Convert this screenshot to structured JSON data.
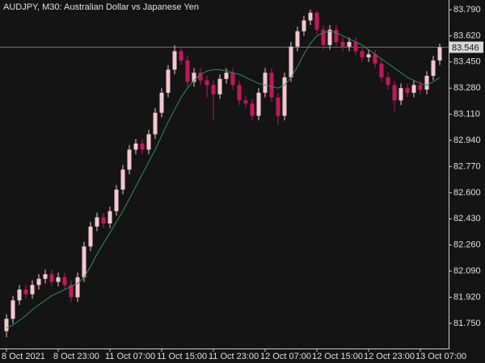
{
  "chart_data": {
    "type": "candlestick",
    "title": "AUDJPY, M30:  Australian Dollar vs Japanese Yen",
    "categories": [
      "8 Oct 2021",
      null,
      null,
      null,
      null,
      null,
      null,
      null,
      "8 Oct 23:00",
      null,
      null,
      null,
      null,
      null,
      null,
      null,
      "11 Oct 07:00",
      null,
      null,
      null,
      null,
      null,
      null,
      null,
      "11 Oct 15:00",
      null,
      null,
      null,
      null,
      null,
      null,
      null,
      "11 Oct 23:00",
      null,
      null,
      null,
      null,
      null,
      null,
      null,
      "12 Oct 07:00",
      null,
      null,
      null,
      null,
      null,
      null,
      null,
      "12 Oct 15:00",
      null,
      null,
      null,
      null,
      null,
      null,
      null,
      "12 Oct 23:00",
      null,
      null,
      null,
      null,
      null,
      null,
      null,
      "13 Oct 07:00",
      null,
      null,
      null
    ],
    "open": [
      81.7,
      81.78,
      81.9,
      81.97,
      81.94,
      82.0,
      82.04,
      82.07,
      82.02,
      82.05,
      82.0,
      81.92,
      82.05,
      82.25,
      82.38,
      82.44,
      82.4,
      82.48,
      82.62,
      82.75,
      82.88,
      82.92,
      82.88,
      82.98,
      83.12,
      83.25,
      83.4,
      83.52,
      83.46,
      83.32,
      83.38,
      83.33,
      83.3,
      83.24,
      83.34,
      83.38,
      83.3,
      83.2,
      83.18,
      83.1,
      83.25,
      83.38,
      83.22,
      83.1,
      83.35,
      83.55,
      83.65,
      83.72,
      83.77,
      83.66,
      83.56,
      83.66,
      83.58,
      83.55,
      83.58,
      83.52,
      83.48,
      83.5,
      83.44,
      83.35,
      83.3,
      83.2,
      83.28,
      83.25,
      83.3,
      83.27,
      83.36,
      83.46
    ],
    "high": [
      81.81,
      81.93,
      82.0,
      82.0,
      82.03,
      82.07,
      82.1,
      82.1,
      82.08,
      82.08,
      82.03,
      82.08,
      82.28,
      82.41,
      82.47,
      82.47,
      82.51,
      82.65,
      82.78,
      82.91,
      82.95,
      82.95,
      83.01,
      83.15,
      83.28,
      83.43,
      83.56,
      83.55,
      83.49,
      83.41,
      83.41,
      83.36,
      83.33,
      83.37,
      83.41,
      83.41,
      83.33,
      83.23,
      83.21,
      83.28,
      83.41,
      83.41,
      83.25,
      83.38,
      83.58,
      83.68,
      83.75,
      83.79,
      83.78,
      83.69,
      83.69,
      83.69,
      83.61,
      83.61,
      83.61,
      83.55,
      83.53,
      83.53,
      83.47,
      83.38,
      83.33,
      83.31,
      83.31,
      83.33,
      83.33,
      83.39,
      83.49,
      83.57
    ],
    "low": [
      81.66,
      81.75,
      81.87,
      81.91,
      81.91,
      81.97,
      82.01,
      81.99,
      81.99,
      81.97,
      81.89,
      81.89,
      82.02,
      82.22,
      82.35,
      82.37,
      82.37,
      82.45,
      82.59,
      82.72,
      82.85,
      82.85,
      82.85,
      82.95,
      83.09,
      83.22,
      83.37,
      83.43,
      83.29,
      83.29,
      83.3,
      83.22,
      83.07,
      83.21,
      83.31,
      83.27,
      83.17,
      83.15,
      83.07,
      83.07,
      83.22,
      83.19,
      83.04,
      83.07,
      83.32,
      83.52,
      83.62,
      83.69,
      83.63,
      83.53,
      83.53,
      83.55,
      83.52,
      83.52,
      83.49,
      83.45,
      83.45,
      83.41,
      83.32,
      83.27,
      83.13,
      83.17,
      83.22,
      83.22,
      83.24,
      83.24,
      83.33,
      83.43
    ],
    "close": [
      81.78,
      81.9,
      81.97,
      81.94,
      82.0,
      82.04,
      82.07,
      82.02,
      82.05,
      82.0,
      81.92,
      82.05,
      82.25,
      82.38,
      82.44,
      82.4,
      82.48,
      82.62,
      82.75,
      82.88,
      82.92,
      82.88,
      82.98,
      83.12,
      83.25,
      83.4,
      83.52,
      83.46,
      83.32,
      83.38,
      83.33,
      83.3,
      83.24,
      83.34,
      83.38,
      83.3,
      83.2,
      83.18,
      83.1,
      83.25,
      83.38,
      83.22,
      83.1,
      83.35,
      83.55,
      83.65,
      83.72,
      83.77,
      83.66,
      83.56,
      83.66,
      83.58,
      83.55,
      83.58,
      83.52,
      83.48,
      83.5,
      83.44,
      83.35,
      83.3,
      83.2,
      83.28,
      83.25,
      83.3,
      83.27,
      83.36,
      83.46,
      83.546
    ],
    "up_color": "#f4c7cf",
    "down_color": "#c2185b",
    "ma": {
      "color": "#2f8f6a",
      "values": [
        81.72,
        81.74,
        81.77,
        81.8,
        81.84,
        81.87,
        81.9,
        81.93,
        81.95,
        81.97,
        81.99,
        82.01,
        82.05,
        82.12,
        82.2,
        82.27,
        82.34,
        82.41,
        82.48,
        82.56,
        82.64,
        82.72,
        82.8,
        82.88,
        82.97,
        83.06,
        83.14,
        83.22,
        83.28,
        83.33,
        83.37,
        83.39,
        83.4,
        83.4,
        83.39,
        83.38,
        83.37,
        83.35,
        83.33,
        83.31,
        83.3,
        83.29,
        83.28,
        83.3,
        83.35,
        83.42,
        83.5,
        83.57,
        83.62,
        83.64,
        83.65,
        83.64,
        83.62,
        83.6,
        83.58,
        83.56,
        83.53,
        83.5,
        83.47,
        83.44,
        83.41,
        83.38,
        83.35,
        83.33,
        83.31,
        83.3,
        83.32,
        83.35
      ]
    },
    "current_price": 83.546,
    "ylim": [
      81.587,
      83.853
    ],
    "yticks": [
      {
        "value": 81.75,
        "label": "81.750"
      },
      {
        "value": 81.92,
        "label": "81.920"
      },
      {
        "value": 82.09,
        "label": "82.090"
      },
      {
        "value": 82.26,
        "label": "82.260"
      },
      {
        "value": 82.43,
        "label": "82.430"
      },
      {
        "value": 82.6,
        "label": "82.600"
      },
      {
        "value": 82.77,
        "label": "82.770"
      },
      {
        "value": 82.94,
        "label": "82.940"
      },
      {
        "value": 83.11,
        "label": "83.110"
      },
      {
        "value": 83.28,
        "label": "83.280"
      },
      {
        "value": 83.45,
        "label": "83.450"
      },
      {
        "value": 83.62,
        "label": "83.620"
      },
      {
        "value": 83.79,
        "label": "83.790"
      }
    ]
  }
}
